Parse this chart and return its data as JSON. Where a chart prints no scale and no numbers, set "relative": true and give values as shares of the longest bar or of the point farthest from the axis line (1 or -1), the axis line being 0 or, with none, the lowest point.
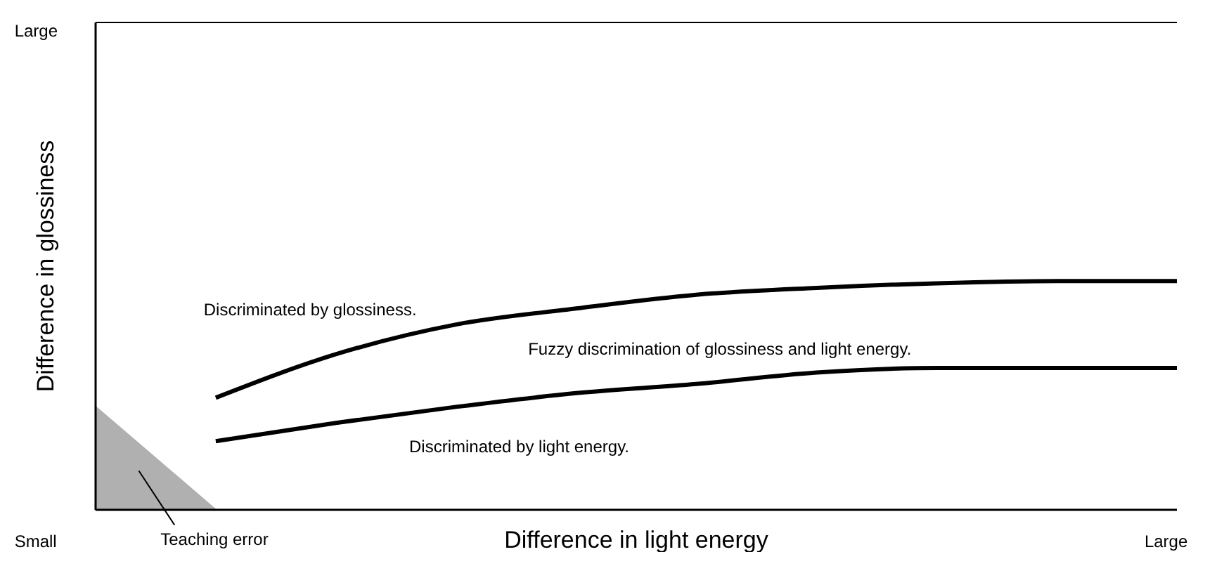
{
  "chart_data": {
    "type": "line",
    "relative": true,
    "xlabel": "Difference in light energy",
    "ylabel": "Difference in glossiness",
    "categories": [
      null,
      null,
      null,
      null,
      null,
      null,
      null,
      null,
      null,
      null
    ],
    "marker": "none",
    "line_style": "solid",
    "series": [
      {
        "color": "#000000",
        "values": [
          null,
          0.49,
          0.68,
          0.81,
          0.88,
          0.94,
          0.97,
          0.99,
          1,
          1
        ]
      },
      {
        "color": "#000000",
        "values": [
          null,
          0.3,
          0.38,
          0.45,
          0.51,
          0.55,
          0.6,
          0.62,
          0.62,
          0.62
        ]
      },
      {
        "type": "area",
        "color": "#b0b0b0",
        "values": [
          0.45,
          0,
          null,
          null,
          null,
          null,
          null,
          null,
          null,
          null
        ]
      }
    ],
    "annotations": [
      "Discriminated by glossiness.",
      "Fuzzy discrimination of glossiness and light energy.",
      "Discriminated by light energy.",
      "Teaching error",
      "Small",
      "Large",
      "Large"
    ]
  }
}
